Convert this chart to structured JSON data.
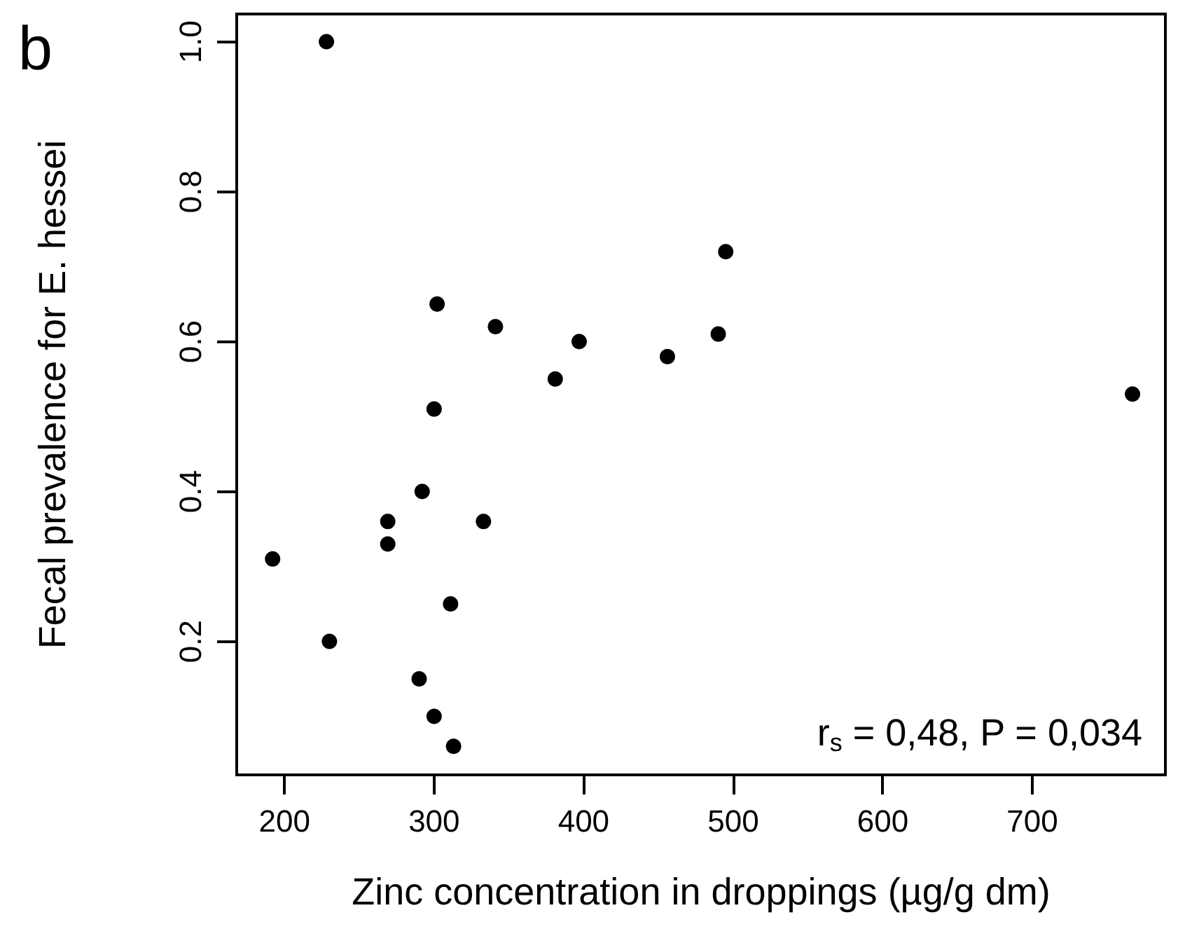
{
  "chart_data": {
    "type": "scatter",
    "title": "b",
    "xlabel": "Zinc concentration in droppings (µg/g dm)",
    "ylabel": "Fecal prevalence for E. hessei",
    "annotations": [
      "r$_{s}$ = 0,48, P = 0,034"
    ],
    "x": [
      228,
      192,
      230,
      269,
      269,
      292,
      302,
      300,
      333,
      311,
      290,
      300,
      313,
      341,
      381,
      397,
      456,
      490,
      495,
      767
    ],
    "series": [
      {
        "color": "#000000",
        "values": [
          1.0,
          0.31,
          0.2,
          0.36,
          0.33,
          0.4,
          0.65,
          0.51,
          0.36,
          0.25,
          0.15,
          0.1,
          0.06,
          0.62,
          0.55,
          0.6,
          0.58,
          0.61,
          0.72,
          0.53
        ]
      }
    ],
    "xlim": [
      168,
      789
    ],
    "xticks": [
      200,
      300,
      400,
      500,
      600,
      700
    ],
    "ylim": [
      0.022,
      1.037
    ],
    "yticks": [
      {
        "value": 0.2,
        "label": "0.2"
      },
      {
        "value": 0.4,
        "label": "0.4"
      },
      {
        "value": 0.6,
        "label": "0.6"
      },
      {
        "value": 0.8,
        "label": "0.8"
      },
      {
        "value": 1,
        "label": "1.0"
      }
    ],
    "marker": "circle",
    "grid": false
  }
}
